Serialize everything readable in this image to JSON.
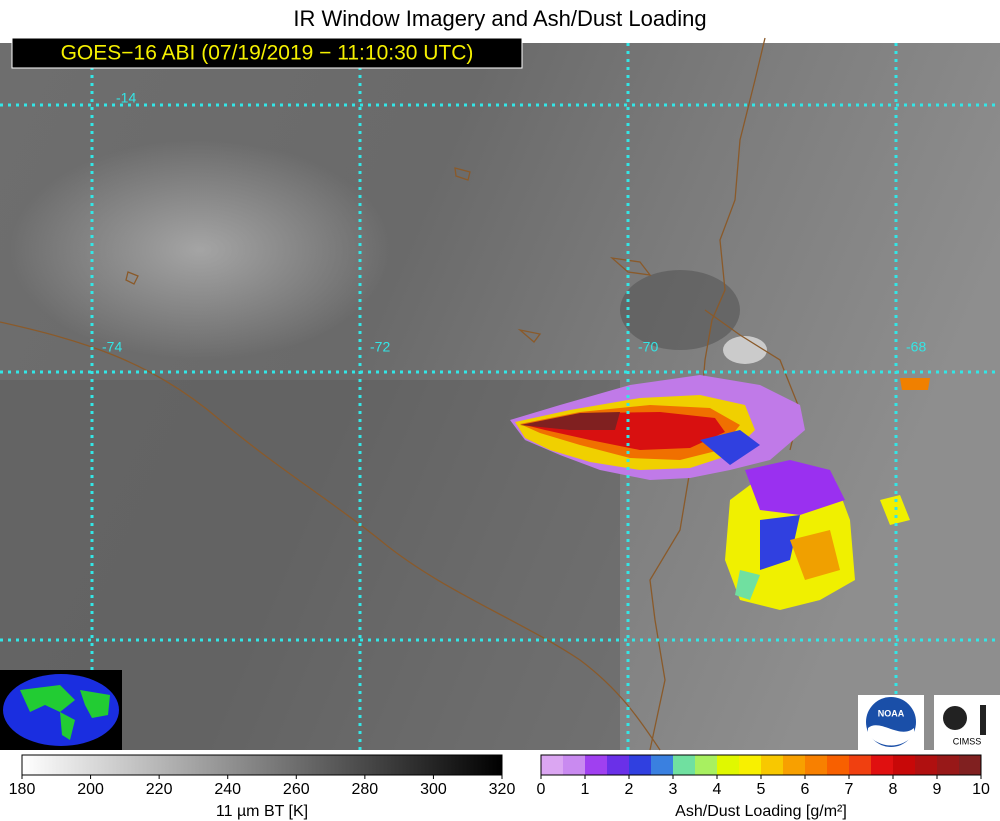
{
  "title": "IR Window Imagery and Ash/Dust Loading",
  "subtitle": "GOES−16 ABI (07/19/2019 − 11:10:30 UTC)",
  "graticule": {
    "latitudes": [
      "-14"
    ],
    "longitudes": [
      "-74",
      "-72",
      "-70",
      "-68"
    ]
  },
  "logos": [
    "NOAA",
    "CIMSS"
  ],
  "colorbar_bt": {
    "label": "11 µm BT [K]",
    "ticks": [
      180,
      200,
      220,
      240,
      260,
      280,
      300,
      320
    ]
  },
  "colorbar_ash": {
    "label": "Ash/Dust Loading [g/m²]",
    "ticks": [
      0,
      1,
      2,
      3,
      4,
      5,
      6,
      7,
      8,
      9,
      10
    ],
    "colors": [
      "#dba6f2",
      "#c98af0",
      "#a040f0",
      "#6a30e8",
      "#3040e0",
      "#3a80e0",
      "#70e0a0",
      "#a8f060",
      "#e0f800",
      "#f8f000",
      "#f8c800",
      "#f8a000",
      "#f88000",
      "#f86000",
      "#f04010",
      "#e01010",
      "#c80808",
      "#b01010",
      "#981818",
      "#802020"
    ]
  }
}
